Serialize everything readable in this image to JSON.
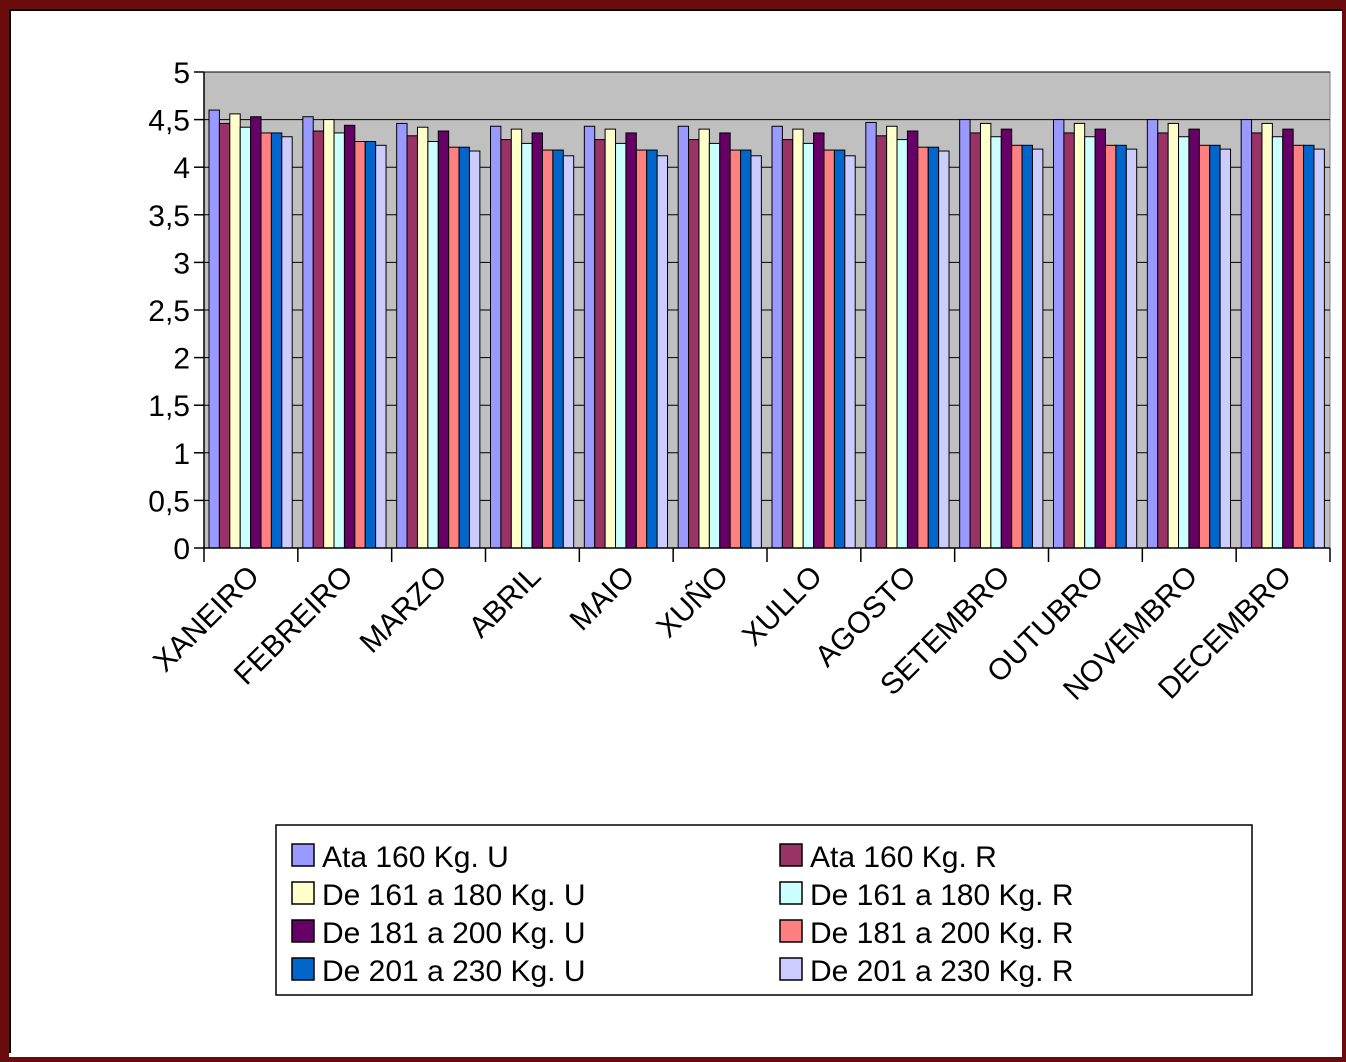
{
  "chart_data": {
    "type": "bar",
    "title": "",
    "xlabel": "",
    "ylabel": "",
    "ylim": [
      0,
      5
    ],
    "yticks": [
      "0",
      "0,5",
      "1",
      "1,5",
      "2",
      "2,5",
      "3",
      "3,5",
      "4",
      "4,5",
      "5"
    ],
    "ytick_values": [
      0,
      0.5,
      1,
      1.5,
      2,
      2.5,
      3,
      3.5,
      4,
      4.5,
      5
    ],
    "grid": true,
    "legend_position": "bottom",
    "plot_background": "#c0c0c0",
    "categories": [
      "XANEIRO",
      "FEBREIRO",
      "MARZO",
      "ABRIL",
      "MAIO",
      "XUÑO",
      "XULLO",
      "AGOSTO",
      "SETEMBRO",
      "OUTUBRO",
      "NOVEMBRO",
      "DECEMBRO"
    ],
    "series": [
      {
        "name": "Ata 160 Kg. U",
        "color": "#9999ff",
        "values": [
          4.6,
          4.53,
          4.46,
          4.43,
          4.43,
          4.43,
          4.43,
          4.47,
          4.5,
          4.5,
          4.5,
          4.5
        ]
      },
      {
        "name": "Ata 160 Kg. R",
        "color": "#993366",
        "values": [
          4.46,
          4.38,
          4.33,
          4.29,
          4.29,
          4.29,
          4.29,
          4.33,
          4.36,
          4.36,
          4.36,
          4.36
        ]
      },
      {
        "name": "De 161 a 180 Kg. U",
        "color": "#ffffcc",
        "values": [
          4.56,
          4.5,
          4.42,
          4.4,
          4.4,
          4.4,
          4.4,
          4.43,
          4.46,
          4.46,
          4.46,
          4.46
        ]
      },
      {
        "name": "De 161 a 180 Kg. R",
        "color": "#ccffff",
        "values": [
          4.42,
          4.36,
          4.27,
          4.25,
          4.25,
          4.25,
          4.25,
          4.29,
          4.32,
          4.32,
          4.32,
          4.32
        ]
      },
      {
        "name": "De 181 a 200 Kg. U",
        "color": "#660066",
        "values": [
          4.53,
          4.44,
          4.38,
          4.36,
          4.36,
          4.36,
          4.36,
          4.38,
          4.4,
          4.4,
          4.4,
          4.4
        ]
      },
      {
        "name": "De 181 a 200 Kg. R",
        "color": "#ff8080",
        "values": [
          4.36,
          4.27,
          4.21,
          4.18,
          4.18,
          4.18,
          4.18,
          4.21,
          4.23,
          4.23,
          4.23,
          4.23
        ]
      },
      {
        "name": "De 201 a 230 Kg. U",
        "color": "#0066cc",
        "values": [
          4.36,
          4.27,
          4.21,
          4.18,
          4.18,
          4.18,
          4.18,
          4.21,
          4.23,
          4.23,
          4.23,
          4.23
        ]
      },
      {
        "name": "De 201 a 230 Kg. R",
        "color": "#ccccff",
        "values": [
          4.32,
          4.23,
          4.17,
          4.12,
          4.12,
          4.12,
          4.12,
          4.17,
          4.19,
          4.19,
          4.19,
          4.19
        ]
      }
    ]
  }
}
